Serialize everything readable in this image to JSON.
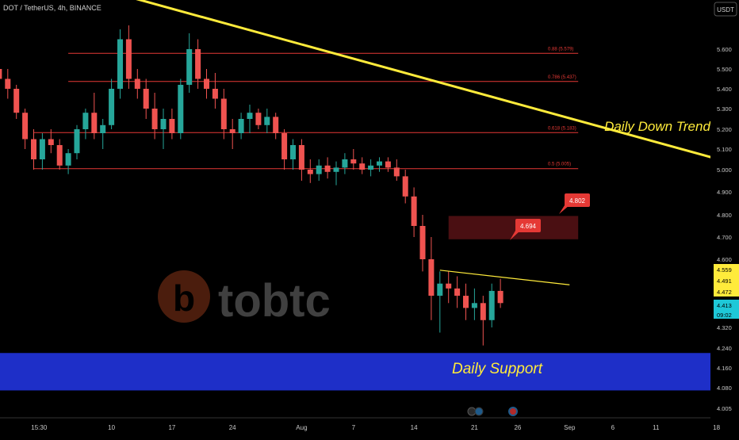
{
  "header": {
    "symbol_title": "DOT / TetherUS, 4h, BINANCE",
    "currency_badge": "USDT"
  },
  "watermark": {
    "brand": "tobtc",
    "logo_letter": "b"
  },
  "colors": {
    "background": "#000000",
    "candle_up": "#26a69a",
    "candle_down": "#ef5350",
    "trendline": "#ffeb3b",
    "fib_line": "#e53935",
    "support_zone": "#1e2fc8",
    "resistance_zone": "#4a0f12",
    "badge_red": "#e53935",
    "label_yellow": "#ffeb3b",
    "price_cyan": "#1ec8d8",
    "axis_text": "#c8c8c8"
  },
  "chart_data": {
    "type": "candlestick",
    "title": "DOT / TetherUS, 4h, BINANCE",
    "currency": "USDT",
    "yaxis": {
      "ticks": [
        "5.600",
        "5.500",
        "5.400",
        "5.300",
        "5.200",
        "5.100",
        "5.000",
        "4.900",
        "4.800",
        "4.700",
        "4.600",
        "4.320",
        "4.240",
        "4.160",
        "4.080",
        "4.005"
      ],
      "tick_values": [
        5.6,
        5.5,
        5.4,
        5.3,
        5.2,
        5.1,
        5.0,
        4.9,
        4.8,
        4.7,
        4.6,
        4.32,
        4.24,
        4.16,
        4.08,
        4.005
      ],
      "range": [
        4.0,
        5.75
      ]
    },
    "xaxis": {
      "ticks": [
        "15:30",
        "10",
        "17",
        "24",
        "Aug",
        "7",
        "14",
        "21",
        "26",
        "Sep",
        "6",
        "11",
        "18"
      ],
      "tick_days": [
        3,
        10,
        17,
        24,
        32,
        38,
        45,
        52,
        57,
        63,
        68,
        73,
        80
      ]
    },
    "price_labels": [
      {
        "text": "4.559",
        "value": 4.559,
        "style": "yellow"
      },
      {
        "text": "4.491",
        "value": 4.491,
        "style": "yellow"
      },
      {
        "text": "4.472",
        "value": 4.472,
        "style": "yellow"
      },
      {
        "text": "4.413",
        "value": 4.413,
        "style": "cyan"
      },
      {
        "text": "09:02",
        "value": 4.39,
        "style": "cyan"
      }
    ],
    "fib_levels": [
      {
        "label": "0.88 (5.579)",
        "value": 5.579
      },
      {
        "label": "0.786 (5.437)",
        "value": 5.437
      },
      {
        "label": "0.618 (5.183)",
        "value": 5.183
      },
      {
        "label": "0.5 (5.005)",
        "value": 5.005
      }
    ],
    "annotations": [
      {
        "text": "Daily Down Trend",
        "type": "trendline_label"
      },
      {
        "text": "Daily Support",
        "type": "zone_label"
      },
      {
        "text": "4.802",
        "type": "price_badge",
        "value": 4.802
      },
      {
        "text": "4.694",
        "type": "price_badge",
        "value": 4.694
      }
    ],
    "trendlines": [
      {
        "name": "Daily Down Trend",
        "from": {
          "day": 9,
          "price": 5.9
        },
        "to": {
          "day": 82,
          "price": 5.03
        }
      },
      {
        "name": "Local resistance",
        "from": {
          "day": 48,
          "price": 4.555
        },
        "to": {
          "day": 63,
          "price": 4.495
        }
      }
    ],
    "zones": [
      {
        "name": "Daily Support",
        "low": 4.07,
        "high": 4.22
      },
      {
        "name": "Resistance box",
        "low": 4.69,
        "high": 4.795,
        "from_day": 49,
        "to_day": 64
      }
    ],
    "candles": [
      [
        -3,
        5.5,
        5.55,
        5.4,
        5.45
      ],
      [
        -2,
        5.45,
        5.5,
        5.35,
        5.4
      ],
      [
        -1,
        5.4,
        5.42,
        5.25,
        5.28
      ],
      [
        0,
        5.28,
        5.3,
        5.1,
        5.15
      ],
      [
        1,
        5.15,
        5.2,
        5.0,
        5.05
      ],
      [
        2,
        5.05,
        5.18,
        5.0,
        5.15
      ],
      [
        3,
        5.15,
        5.2,
        5.08,
        5.12
      ],
      [
        4,
        5.12,
        5.15,
        5.0,
        5.02
      ],
      [
        5,
        5.02,
        5.1,
        4.98,
        5.08
      ],
      [
        6,
        5.08,
        5.22,
        5.05,
        5.2
      ],
      [
        7,
        5.2,
        5.3,
        5.15,
        5.28
      ],
      [
        8,
        5.28,
        5.38,
        5.15,
        5.18
      ],
      [
        9,
        5.18,
        5.25,
        5.1,
        5.22
      ],
      [
        10,
        5.22,
        5.45,
        5.2,
        5.4
      ],
      [
        11,
        5.4,
        5.7,
        5.35,
        5.65
      ],
      [
        12,
        5.65,
        5.72,
        5.4,
        5.45
      ],
      [
        13,
        5.45,
        5.5,
        5.35,
        5.4
      ],
      [
        14,
        5.4,
        5.45,
        5.25,
        5.3
      ],
      [
        15,
        5.3,
        5.38,
        5.15,
        5.2
      ],
      [
        16,
        5.2,
        5.3,
        5.1,
        5.25
      ],
      [
        17,
        5.25,
        5.3,
        5.15,
        5.18
      ],
      [
        18,
        5.18,
        5.45,
        5.15,
        5.42
      ],
      [
        19,
        5.42,
        5.68,
        5.38,
        5.6
      ],
      [
        20,
        5.6,
        5.65,
        5.4,
        5.45
      ],
      [
        21,
        5.45,
        5.5,
        5.35,
        5.4
      ],
      [
        22,
        5.4,
        5.48,
        5.3,
        5.35
      ],
      [
        23,
        5.35,
        5.4,
        5.15,
        5.2
      ],
      [
        24,
        5.2,
        5.25,
        5.1,
        5.18
      ],
      [
        25,
        5.18,
        5.28,
        5.15,
        5.25
      ],
      [
        26,
        5.25,
        5.32,
        5.18,
        5.28
      ],
      [
        27,
        5.28,
        5.3,
        5.2,
        5.22
      ],
      [
        28,
        5.22,
        5.3,
        5.18,
        5.26
      ],
      [
        29,
        5.26,
        5.28,
        5.15,
        5.18
      ],
      [
        30,
        5.18,
        5.2,
        5.0,
        5.05
      ],
      [
        31,
        5.05,
        5.15,
        5.0,
        5.12
      ],
      [
        32,
        5.12,
        5.15,
        4.95,
        5.0
      ],
      [
        33,
        5.0,
        5.05,
        4.94,
        4.98
      ],
      [
        34,
        4.98,
        5.05,
        4.95,
        5.02
      ],
      [
        35,
        5.02,
        5.06,
        4.96,
        4.99
      ],
      [
        36,
        4.99,
        5.04,
        4.93,
        5.01
      ],
      [
        37,
        5.01,
        5.08,
        4.98,
        5.05
      ],
      [
        38,
        5.05,
        5.1,
        5.0,
        5.03
      ],
      [
        39,
        5.03,
        5.06,
        4.98,
        5.0
      ],
      [
        40,
        5.0,
        5.05,
        4.97,
        5.02
      ],
      [
        41,
        5.02,
        5.06,
        4.99,
        5.04
      ],
      [
        42,
        5.04,
        5.06,
        4.99,
        5.01
      ],
      [
        43,
        5.01,
        5.05,
        4.95,
        4.97
      ],
      [
        44,
        4.97,
        5.0,
        4.85,
        4.88
      ],
      [
        45,
        4.88,
        4.92,
        4.7,
        4.75
      ],
      [
        46,
        4.75,
        4.8,
        4.55,
        4.6
      ],
      [
        47,
        4.6,
        4.7,
        4.35,
        4.45
      ],
      [
        48,
        4.45,
        4.55,
        4.3,
        4.5
      ],
      [
        49,
        4.5,
        4.55,
        4.42,
        4.48
      ],
      [
        50,
        4.48,
        4.53,
        4.4,
        4.45
      ],
      [
        51,
        4.45,
        4.5,
        4.35,
        4.4
      ],
      [
        52,
        4.4,
        4.48,
        4.35,
        4.42
      ],
      [
        53,
        4.42,
        4.45,
        4.25,
        4.35
      ],
      [
        54,
        4.35,
        4.5,
        4.32,
        4.47
      ],
      [
        55,
        4.47,
        4.52,
        4.4,
        4.42
      ]
    ]
  }
}
